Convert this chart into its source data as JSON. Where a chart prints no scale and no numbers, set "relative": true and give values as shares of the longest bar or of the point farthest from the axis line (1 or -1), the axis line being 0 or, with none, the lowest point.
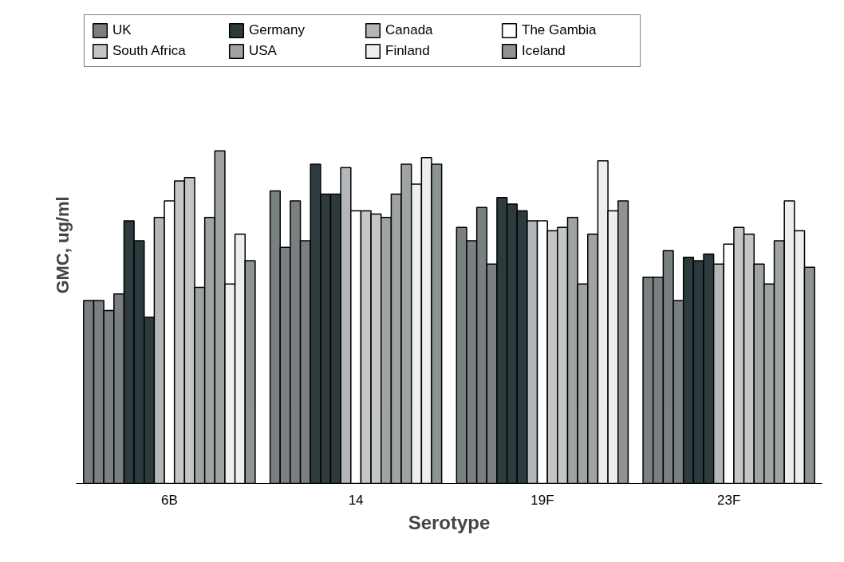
{
  "chart_data": {
    "type": "bar",
    "relative": true,
    "xlabel": "Serotype",
    "ylabel": "GMC, ug/ml",
    "categories": [
      "6B",
      "14",
      "19F",
      "23F"
    ],
    "legend": "top",
    "series": [
      {
        "name": "UK",
        "color": "#7a8082",
        "values": [
          0.55,
          0.88,
          0.77,
          0.62
        ]
      },
      {
        "color": "#7a8082",
        "values": [
          0.55,
          0.71,
          0.73,
          0.62
        ]
      },
      {
        "color": "#7a8082",
        "values": [
          0.52,
          0.85,
          0.83,
          0.7
        ]
      },
      {
        "color": "#7a8082",
        "values": [
          0.57,
          0.73,
          0.66,
          0.55
        ]
      },
      {
        "name": "Germany",
        "color": "#2e3b3e",
        "values": [
          0.79,
          0.96,
          0.86,
          0.68
        ]
      },
      {
        "color": "#2e3b3e",
        "values": [
          0.73,
          0.87,
          0.84,
          0.67
        ]
      },
      {
        "color": "#2e3b3e",
        "values": [
          0.5,
          0.87,
          0.82,
          0.69
        ]
      },
      {
        "name": "Canada",
        "color": "#b4b7b9",
        "values": [
          0.8,
          0.95,
          0.79,
          0.66
        ]
      },
      {
        "name": "The Gambia",
        "color": "#ffffff",
        "values": [
          0.85,
          0.82,
          0.79,
          0.72
        ]
      },
      {
        "name": "South Africa",
        "color": "#c4c6c6",
        "values": [
          0.91,
          0.82,
          0.76,
          0.77
        ]
      },
      {
        "color": "#c4c6c6",
        "values": [
          0.92,
          0.81,
          0.77,
          0.75
        ]
      },
      {
        "name": "USA",
        "color": "#9fa3a3",
        "values": [
          0.59,
          0.8,
          0.8,
          0.66
        ]
      },
      {
        "color": "#9fa3a3",
        "values": [
          0.8,
          0.87,
          0.6,
          0.6
        ]
      },
      {
        "color": "#9fa3a3",
        "values": [
          1,
          0.96,
          0.75,
          0.73
        ]
      },
      {
        "name": "Finland",
        "color": "#eeeeee",
        "values": [
          0.6,
          0.9,
          0.97,
          0.85
        ]
      },
      {
        "color": "#eeeeee",
        "values": [
          0.75,
          0.98,
          0.82,
          0.76
        ]
      },
      {
        "name": "Iceland",
        "color": "#8e9494",
        "values": [
          0.67,
          0.96,
          0.85,
          0.65
        ]
      }
    ]
  }
}
